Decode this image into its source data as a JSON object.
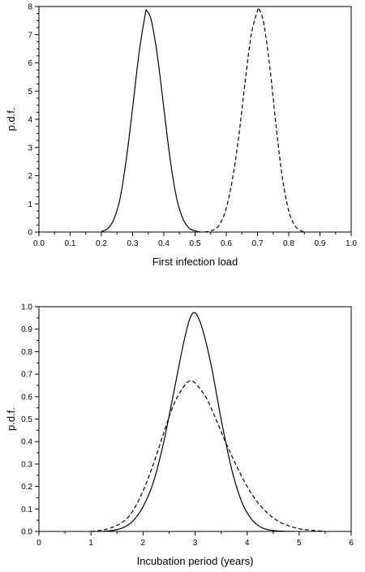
{
  "chart_data": [
    {
      "type": "line",
      "title": "",
      "xlabel": "First infection load",
      "ylabel": "p.d.f.",
      "xlim": [
        0.0,
        1.0
      ],
      "ylim": [
        0,
        8
      ],
      "x_ticks": [
        "0.0",
        "0.1",
        "0.2",
        "0.3",
        "0.4",
        "0.5",
        "0.6",
        "0.7",
        "0.8",
        "0.9",
        "1.0"
      ],
      "y_ticks": [
        "0",
        "1",
        "2",
        "3",
        "4",
        "5",
        "6",
        "7",
        "8"
      ],
      "grid": false,
      "series": [
        {
          "style": "solid",
          "x": [
            0.2,
            0.22,
            0.24,
            0.26,
            0.28,
            0.3,
            0.32,
            0.34,
            0.345,
            0.36,
            0.38,
            0.4,
            0.42,
            0.44,
            0.46,
            0.48,
            0.5,
            0.52
          ],
          "y": [
            0.02,
            0.12,
            0.45,
            1.2,
            2.6,
            4.4,
            6.3,
            7.7,
            7.85,
            7.5,
            6.2,
            4.4,
            2.6,
            1.25,
            0.5,
            0.15,
            0.04,
            0.0
          ]
        },
        {
          "style": "dashed",
          "x": [
            0.53,
            0.56,
            0.58,
            0.6,
            0.62,
            0.64,
            0.66,
            0.68,
            0.7,
            0.705,
            0.72,
            0.74,
            0.76,
            0.78,
            0.8,
            0.82,
            0.84,
            0.85
          ],
          "y": [
            0.0,
            0.08,
            0.3,
            0.85,
            1.9,
            3.4,
            5.3,
            7.0,
            7.85,
            7.9,
            7.4,
            5.8,
            3.7,
            1.9,
            0.75,
            0.22,
            0.04,
            0.0
          ]
        }
      ]
    },
    {
      "type": "line",
      "title": "",
      "xlabel": "Incubation period (years)",
      "ylabel": "p.d.f.",
      "xlim": [
        0,
        6
      ],
      "ylim": [
        0.0,
        1.0
      ],
      "x_ticks": [
        "0",
        "1",
        "2",
        "3",
        "4",
        "5",
        "6"
      ],
      "y_ticks": [
        "0.0",
        "0.1",
        "0.2",
        "0.3",
        "0.4",
        "0.5",
        "0.6",
        "0.7",
        "0.8",
        "0.9",
        "1.0"
      ],
      "grid": false,
      "series": [
        {
          "style": "solid",
          "x": [
            1.2,
            1.4,
            1.6,
            1.8,
            2.0,
            2.2,
            2.4,
            2.6,
            2.8,
            2.95,
            3.1,
            3.3,
            3.5,
            3.7,
            3.9,
            4.1,
            4.3,
            4.5,
            4.7,
            4.9
          ],
          "y": [
            0.0,
            0.004,
            0.015,
            0.045,
            0.11,
            0.22,
            0.4,
            0.63,
            0.86,
            0.97,
            0.93,
            0.75,
            0.5,
            0.28,
            0.13,
            0.05,
            0.015,
            0.004,
            0.001,
            0.0
          ]
        },
        {
          "style": "dashed",
          "x": [
            1.0,
            1.3,
            1.6,
            1.8,
            2.0,
            2.2,
            2.4,
            2.6,
            2.8,
            2.9,
            3.0,
            3.2,
            3.4,
            3.6,
            3.8,
            4.0,
            4.2,
            4.4,
            4.6,
            4.8,
            5.0,
            5.2,
            5.5
          ],
          "y": [
            0.0,
            0.01,
            0.04,
            0.09,
            0.18,
            0.3,
            0.44,
            0.57,
            0.65,
            0.67,
            0.66,
            0.6,
            0.5,
            0.39,
            0.29,
            0.2,
            0.13,
            0.08,
            0.045,
            0.025,
            0.012,
            0.006,
            0.0
          ]
        }
      ]
    }
  ]
}
